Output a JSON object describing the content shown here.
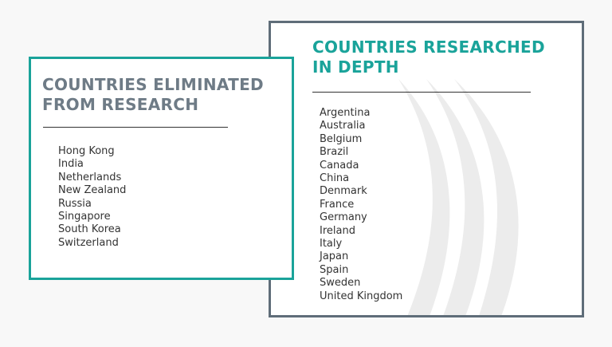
{
  "eliminated": {
    "title_line1": "COUNTRIES ELIMINATED",
    "title_line2": "FROM RESEARCH",
    "countries": [
      "Hong Kong",
      "India",
      "Netherlands",
      "New Zealand",
      "Russia",
      "Singapore",
      "South Korea",
      "Switzerland"
    ]
  },
  "researched": {
    "title_line1": "COUNTRIES RESEARCHED",
    "title_line2": "IN DEPTH",
    "countries": [
      "Argentina",
      "Australia",
      "Belgium",
      "Brazil",
      "Canada",
      "China",
      "Denmark",
      "France",
      "Germany",
      "Ireland",
      "Italy",
      "Japan",
      "Spain",
      "Sweden",
      "United Kingdom"
    ]
  },
  "colors": {
    "teal_accent": "#1aa39a",
    "slate": "#5f6d79",
    "text": "#333333"
  }
}
